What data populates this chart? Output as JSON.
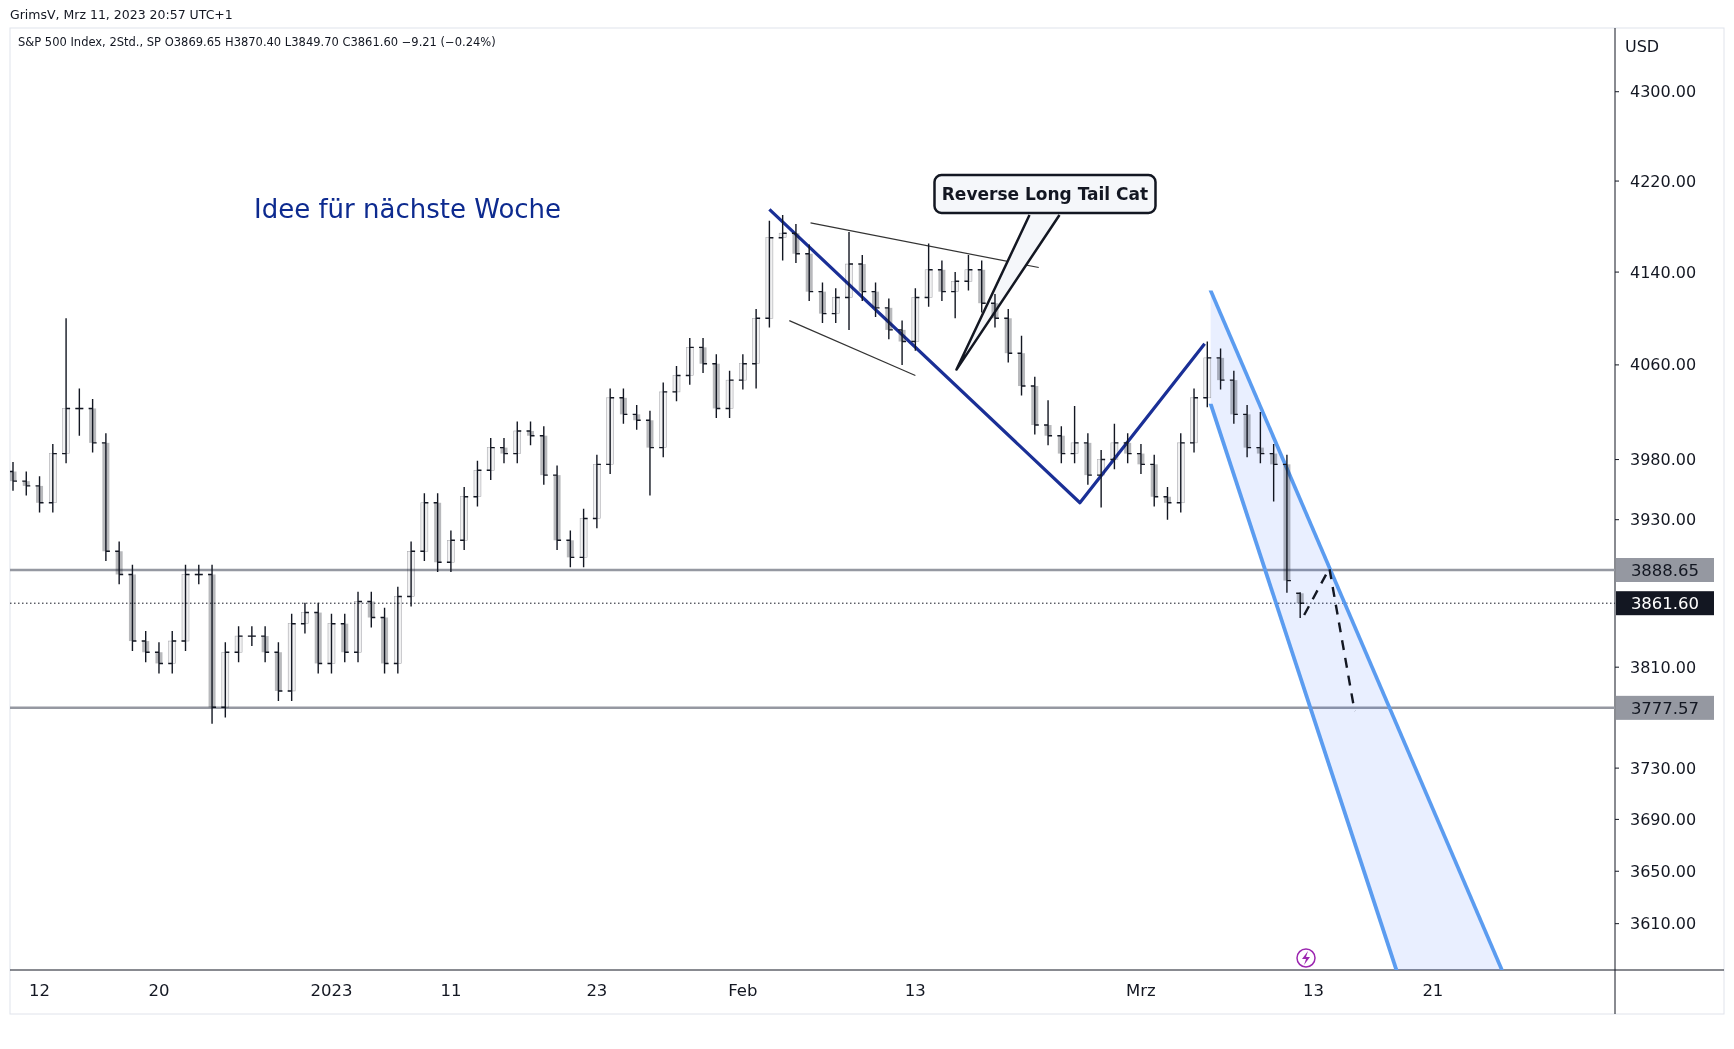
{
  "chart_data": {
    "type": "candlestick",
    "title": "S&P 500 Index, 2Std., SP  O3869.65  H3870.40  L3849.70  C3861.60  −9.21 (−0.24%)",
    "subtitle": "GrimsV, Mrz 11, 2023 20:57 UTC+1",
    "ylabel": "USD",
    "log": true,
    "categories": [
      null,
      null,
      "12",
      null,
      null,
      null,
      null,
      null,
      null,
      null,
      null,
      "20",
      null,
      null,
      null,
      null,
      null,
      null,
      null,
      null,
      null,
      null,
      null,
      null,
      "2023",
      null,
      null,
      null,
      null,
      null,
      null,
      null,
      null,
      "11",
      null,
      null,
      null,
      null,
      null,
      null,
      null,
      null,
      null,
      null,
      "23",
      null,
      null,
      null,
      null,
      null,
      null,
      null,
      null,
      null,
      null,
      "Feb",
      null,
      null,
      null,
      null,
      null,
      null,
      null,
      null,
      null,
      null,
      null,
      null,
      "13",
      null,
      null,
      null,
      null,
      null,
      null,
      null,
      null,
      null,
      null,
      null,
      null,
      null,
      null,
      null,
      null,
      "Mrz",
      null,
      null,
      null,
      null,
      null,
      null,
      null,
      null,
      null,
      null,
      null,
      null,
      "13",
      null,
      null,
      null,
      null,
      null,
      null,
      null,
      null,
      "21",
      null,
      null,
      null,
      null,
      null,
      null,
      null,
      null,
      null,
      null,
      null,
      null,
      null
    ],
    "color": "#131722",
    "ohlc": [
      [
        3970,
        3978,
        3954,
        3962
      ],
      [
        3962,
        3970,
        3950,
        3958
      ],
      [
        3958,
        3966,
        3936,
        3944
      ],
      [
        3944,
        3993,
        3936,
        3985
      ],
      [
        3985,
        4100,
        3977,
        4023
      ],
      [
        4023,
        4040,
        4000,
        4023
      ],
      [
        4023,
        4031,
        3986,
        3994
      ],
      [
        3994,
        4002,
        3896,
        3904
      ],
      [
        3904,
        3912,
        3877,
        3885
      ],
      [
        3885,
        3893,
        3823,
        3831
      ],
      [
        3831,
        3839,
        3814,
        3822
      ],
      [
        3822,
        3830,
        3805,
        3813
      ],
      [
        3813,
        3839,
        3805,
        3831
      ],
      [
        3831,
        3893,
        3823,
        3885
      ],
      [
        3885,
        3893,
        3877,
        3885
      ],
      [
        3885,
        3893,
        3765,
        3778
      ],
      [
        3778,
        3830,
        3770,
        3822
      ],
      [
        3822,
        3843,
        3814,
        3835
      ],
      [
        3835,
        3843,
        3827,
        3835
      ],
      [
        3835,
        3843,
        3814,
        3822
      ],
      [
        3822,
        3830,
        3783,
        3791
      ],
      [
        3791,
        3853,
        3783,
        3845
      ],
      [
        3845,
        3862,
        3837,
        3854
      ],
      [
        3854,
        3862,
        3805,
        3813
      ],
      [
        3813,
        3853,
        3805,
        3845
      ],
      [
        3845,
        3853,
        3814,
        3822
      ],
      [
        3822,
        3871,
        3814,
        3863
      ],
      [
        3863,
        3871,
        3842,
        3850
      ],
      [
        3850,
        3858,
        3805,
        3813
      ],
      [
        3813,
        3875,
        3805,
        3867
      ],
      [
        3867,
        3912,
        3859,
        3904
      ],
      [
        3904,
        3952,
        3896,
        3944
      ],
      [
        3944,
        3952,
        3887,
        3895
      ],
      [
        3895,
        3921,
        3887,
        3913
      ],
      [
        3913,
        3957,
        3905,
        3949
      ],
      [
        3949,
        3979,
        3941,
        3971
      ],
      [
        3971,
        3998,
        3963,
        3990
      ],
      [
        3990,
        3998,
        3977,
        3985
      ],
      [
        3985,
        4012,
        3977,
        4004
      ],
      [
        4004,
        4012,
        3992,
        4000
      ],
      [
        4000,
        4008,
        3959,
        3967
      ],
      [
        3967,
        3975,
        3905,
        3913
      ],
      [
        3913,
        3921,
        3891,
        3899
      ],
      [
        3899,
        3939,
        3891,
        3931
      ],
      [
        3931,
        3984,
        3923,
        3976
      ],
      [
        3976,
        4040,
        3968,
        4032
      ],
      [
        4032,
        4040,
        4010,
        4018
      ],
      [
        4018,
        4026,
        4005,
        4013
      ],
      [
        4013,
        4021,
        3950,
        3990
      ],
      [
        3990,
        4045,
        3982,
        4037
      ],
      [
        4037,
        4059,
        4029,
        4051
      ],
      [
        4051,
        4083,
        4043,
        4075
      ],
      [
        4075,
        4083,
        4053,
        4061
      ],
      [
        4061,
        4069,
        4015,
        4023
      ],
      [
        4023,
        4055,
        4015,
        4047
      ],
      [
        4047,
        4069,
        4039,
        4061
      ],
      [
        4061,
        4108,
        4040,
        4100
      ],
      [
        4100,
        4185,
        4092,
        4170
      ],
      [
        4170,
        4190,
        4150,
        4174
      ],
      [
        4174,
        4182,
        4148,
        4156
      ],
      [
        4156,
        4164,
        4115,
        4123
      ],
      [
        4123,
        4131,
        4096,
        4104
      ],
      [
        4104,
        4126,
        4096,
        4118
      ],
      [
        4118,
        4175,
        4090,
        4147
      ],
      [
        4147,
        4155,
        4115,
        4123
      ],
      [
        4123,
        4131,
        4101,
        4109
      ],
      [
        4109,
        4117,
        4082,
        4090
      ],
      [
        4090,
        4098,
        4060,
        4080
      ],
      [
        4080,
        4126,
        4072,
        4118
      ],
      [
        4118,
        4165,
        4110,
        4142
      ],
      [
        4142,
        4150,
        4115,
        4123
      ],
      [
        4123,
        4140,
        4100,
        4132
      ],
      [
        4132,
        4155,
        4124,
        4142
      ],
      [
        4142,
        4150,
        4105,
        4113
      ],
      [
        4113,
        4121,
        4092,
        4100
      ],
      [
        4100,
        4108,
        4062,
        4070
      ],
      [
        4070,
        4085,
        4034,
        4042
      ],
      [
        4042,
        4050,
        4001,
        4009
      ],
      [
        4009,
        4030,
        3992,
        4000
      ],
      [
        4000,
        4008,
        3977,
        3985
      ],
      [
        3985,
        4025,
        3977,
        3994
      ],
      [
        3994,
        4002,
        3959,
        3967
      ],
      [
        3967,
        3988,
        3940,
        3980
      ],
      [
        3980,
        4010,
        3972,
        3994
      ],
      [
        3994,
        4002,
        3977,
        3985
      ],
      [
        3985,
        3993,
        3968,
        3976
      ],
      [
        3976,
        3984,
        3941,
        3949
      ],
      [
        3949,
        3957,
        3930,
        3944
      ],
      [
        3944,
        4002,
        3936,
        3994
      ],
      [
        3994,
        4040,
        3986,
        4032
      ],
      [
        4032,
        4080,
        4024,
        4066
      ],
      [
        4066,
        4074,
        4039,
        4047
      ],
      [
        4047,
        4055,
        4010,
        4018
      ],
      [
        4018,
        4026,
        3982,
        3990
      ],
      [
        3990,
        4020,
        3977,
        3985
      ],
      [
        3985,
        3993,
        3945,
        3976
      ],
      [
        3976,
        3984,
        3870,
        3880
      ],
      [
        3869.65,
        3870.4,
        3849.7,
        3861.6
      ],
      null,
      null,
      null,
      null,
      null,
      null,
      null,
      null,
      null,
      null,
      null,
      null,
      null,
      null,
      null,
      null,
      null,
      null,
      null,
      null,
      null,
      null,
      null
    ],
    "ylim": [
      3575,
      4358
    ],
    "yticks": [
      {
        "value": 4300,
        "label": "4300.00"
      },
      {
        "value": 4220,
        "label": "4220.00"
      },
      {
        "value": 4140,
        "label": "4140.00"
      },
      {
        "value": 4060,
        "label": "4060.00"
      },
      {
        "value": 3980,
        "label": "3980.00"
      },
      {
        "value": 3930,
        "label": "3930.00"
      },
      {
        "value": 3810,
        "label": "3810.00"
      },
      {
        "value": 3730,
        "label": "3730.00"
      },
      {
        "value": 3690,
        "label": "3690.00"
      },
      {
        "value": 3650,
        "label": "3650.00"
      },
      {
        "value": 3610,
        "label": "3610.00"
      }
    ],
    "ref_lines": [
      {
        "axis": "y",
        "value": 3888.65,
        "label": "3888.65",
        "color": "#9598a1"
      },
      {
        "axis": "y",
        "value": 3777.57,
        "label": "3777.57",
        "color": "#9598a1"
      },
      {
        "axis": "y",
        "value": 3861.6,
        "label": "3861.60",
        "color": "#131722",
        "line_style": "dotted"
      }
    ],
    "annotations": [
      "Idee für nächste Woche",
      "Reverse Long Tail Cat"
    ]
  }
}
